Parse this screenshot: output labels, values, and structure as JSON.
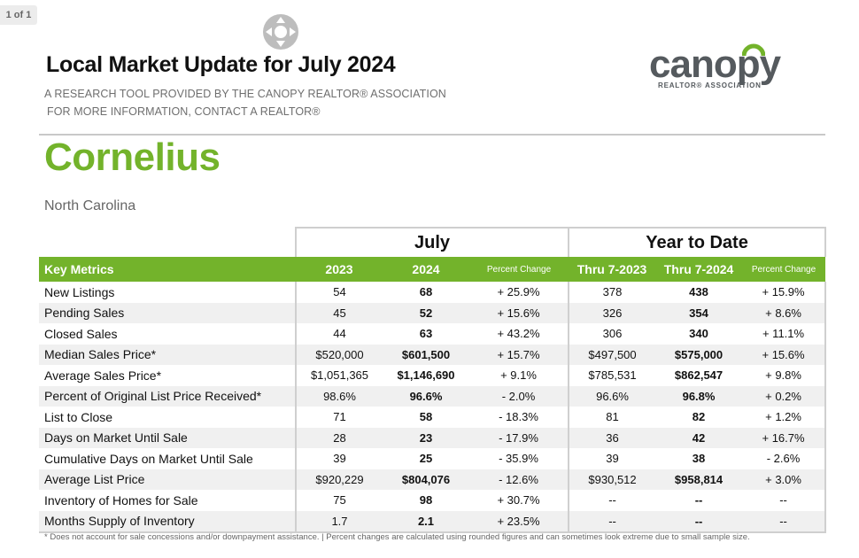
{
  "viewer": {
    "page_counter": "1 of 1"
  },
  "header": {
    "title": "Local Market Update for July 2024",
    "subtitle_line1": "A RESEARCH TOOL PROVIDED BY THE CANOPY REALTOR® ASSOCIATION",
    "subtitle_line2": "FOR MORE INFORMATION, CONTACT A REALTOR®"
  },
  "logo": {
    "word": "canopy",
    "tagline": "REALTOR® ASSOCIATION",
    "arc_color": "#73b32b",
    "text_color": "#555a5e"
  },
  "location": {
    "city": "Cornelius",
    "state": "North Carolina"
  },
  "colors": {
    "accent_green": "#73b32b",
    "alt_row": "#f0f0f0",
    "border": "#cfcfcf"
  },
  "table": {
    "period_july": "July",
    "period_ytd": "Year to Date",
    "headers": [
      "Key Metrics",
      "2023",
      "2024",
      "Percent Change",
      "Thru 7-2023",
      "Thru 7-2024",
      "Percent Change"
    ],
    "rows": [
      [
        "New Listings",
        "54",
        "68",
        "+ 25.9%",
        "378",
        "438",
        "+ 15.9%"
      ],
      [
        "Pending Sales",
        "45",
        "52",
        "+ 15.6%",
        "326",
        "354",
        "+ 8.6%"
      ],
      [
        "Closed Sales",
        "44",
        "63",
        "+ 43.2%",
        "306",
        "340",
        "+ 11.1%"
      ],
      [
        "Median Sales Price*",
        "$520,000",
        "$601,500",
        "+ 15.7%",
        "$497,500",
        "$575,000",
        "+ 15.6%"
      ],
      [
        "Average Sales Price*",
        "$1,051,365",
        "$1,146,690",
        "+ 9.1%",
        "$785,531",
        "$862,547",
        "+ 9.8%"
      ],
      [
        "Percent of Original List Price Received*",
        "98.6%",
        "96.6%",
        "- 2.0%",
        "96.6%",
        "96.8%",
        "+ 0.2%"
      ],
      [
        "List to Close",
        "71",
        "58",
        "- 18.3%",
        "81",
        "82",
        "+ 1.2%"
      ],
      [
        "Days on Market Until Sale",
        "28",
        "23",
        "- 17.9%",
        "36",
        "42",
        "+ 16.7%"
      ],
      [
        "Cumulative Days on Market Until Sale",
        "39",
        "25",
        "- 35.9%",
        "39",
        "38",
        "- 2.6%"
      ],
      [
        "Average List Price",
        "$920,229",
        "$804,076",
        "- 12.6%",
        "$930,512",
        "$958,814",
        "+ 3.0%"
      ],
      [
        "Inventory of Homes for Sale",
        "75",
        "98",
        "+ 30.7%",
        "--",
        "--",
        "--"
      ],
      [
        "Months Supply of Inventory",
        "1.7",
        "2.1",
        "+ 23.5%",
        "--",
        "--",
        "--"
      ]
    ]
  },
  "footnote": "* Does not account for sale concessions and/or downpayment assistance.  |  Percent changes are calculated using rounded figures and can sometimes look extreme due to small sample size."
}
